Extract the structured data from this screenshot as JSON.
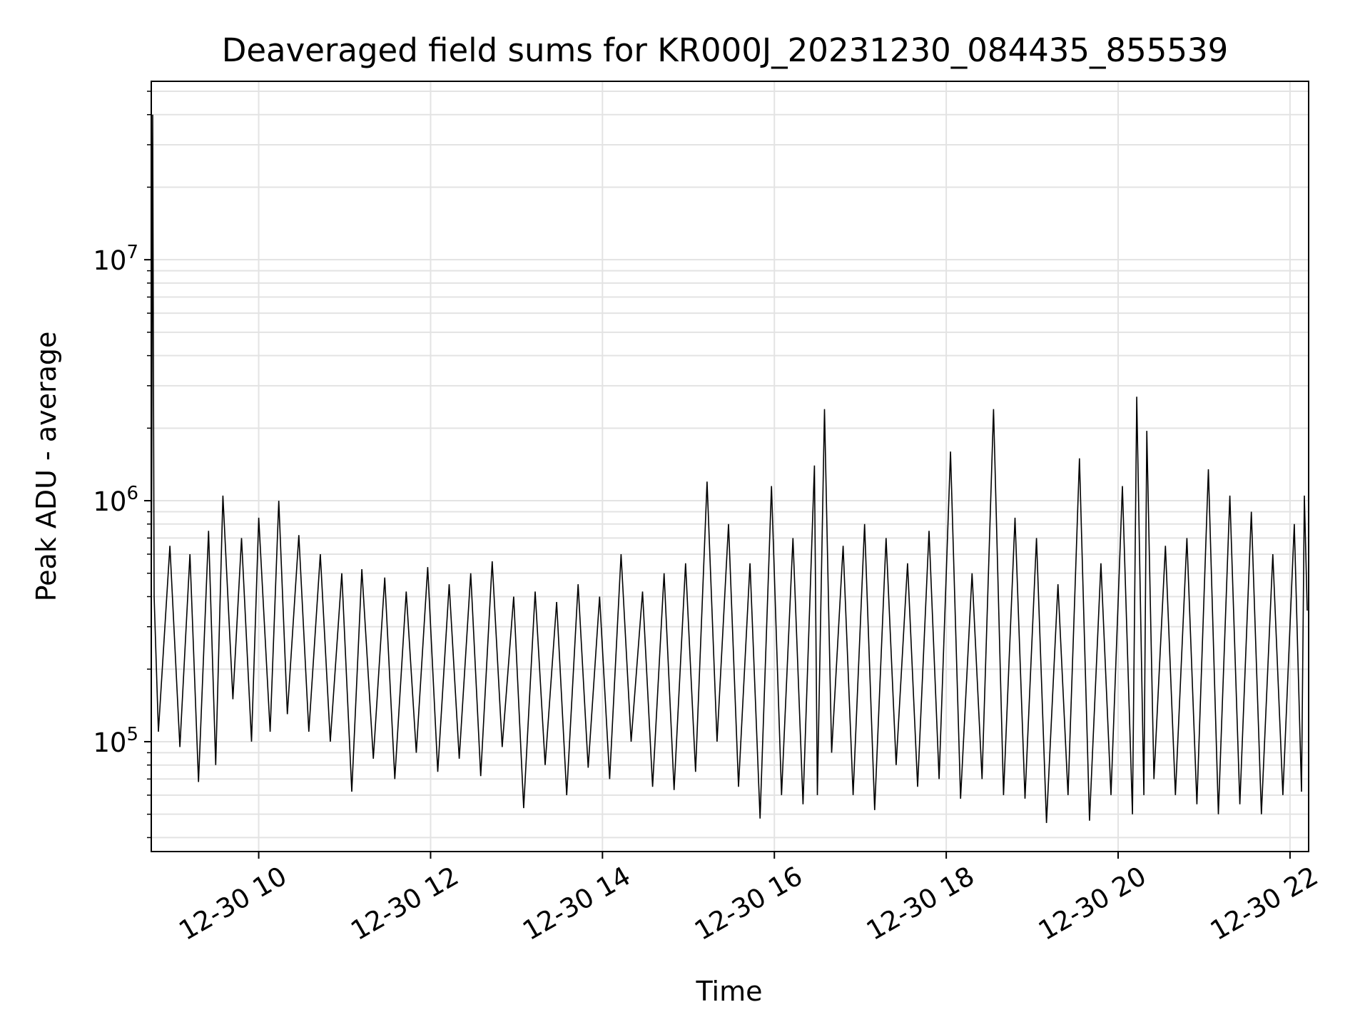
{
  "chart_data": {
    "type": "line",
    "title": "Deaveraged field sums for KR000J_20231230_084435_855539",
    "xlabel": "Time",
    "ylabel": "Peak ADU - average",
    "yscale": "log",
    "xlim": [
      "2023-12-30T08:45",
      "2023-12-30T22:13"
    ],
    "ylim": [
      35000,
      55000000
    ],
    "grid": true,
    "x_ticks": [
      {
        "value": "2023-12-30T10:00",
        "label": "12-30 10"
      },
      {
        "value": "2023-12-30T12:00",
        "label": "12-30 12"
      },
      {
        "value": "2023-12-30T14:00",
        "label": "12-30 14"
      },
      {
        "value": "2023-12-30T16:00",
        "label": "12-30 16"
      },
      {
        "value": "2023-12-30T18:00",
        "label": "12-30 18"
      },
      {
        "value": "2023-12-30T20:00",
        "label": "12-30 20"
      },
      {
        "value": "2023-12-30T22:00",
        "label": "12-30 22"
      }
    ],
    "y_ticks": [
      {
        "value": 100000,
        "base": "10",
        "exp": "5"
      },
      {
        "value": 1000000,
        "base": "10",
        "exp": "6"
      },
      {
        "value": 10000000,
        "base": "10",
        "exp": "7"
      }
    ],
    "series": [
      {
        "color": "#000000",
        "points": [
          [
            "2023-12-30T08:45",
            300000
          ],
          [
            "2023-12-30T08:46",
            40000000
          ],
          [
            "2023-12-30T08:47",
            400000
          ],
          [
            "2023-12-30T08:50",
            110000
          ],
          [
            "2023-12-30T08:58",
            650000
          ],
          [
            "2023-12-30T09:05",
            95000
          ],
          [
            "2023-12-30T09:12",
            600000
          ],
          [
            "2023-12-30T09:18",
            68000
          ],
          [
            "2023-12-30T09:25",
            750000
          ],
          [
            "2023-12-30T09:30",
            80000
          ],
          [
            "2023-12-30T09:35",
            1050000
          ],
          [
            "2023-12-30T09:42",
            150000
          ],
          [
            "2023-12-30T09:48",
            700000
          ],
          [
            "2023-12-30T09:55",
            100000
          ],
          [
            "2023-12-30T10:00",
            850000
          ],
          [
            "2023-12-30T10:08",
            110000
          ],
          [
            "2023-12-30T10:14",
            1000000
          ],
          [
            "2023-12-30T10:20",
            130000
          ],
          [
            "2023-12-30T10:28",
            720000
          ],
          [
            "2023-12-30T10:35",
            110000
          ],
          [
            "2023-12-30T10:43",
            600000
          ],
          [
            "2023-12-30T10:50",
            100000
          ],
          [
            "2023-12-30T10:58",
            500000
          ],
          [
            "2023-12-30T11:05",
            62000
          ],
          [
            "2023-12-30T11:12",
            520000
          ],
          [
            "2023-12-30T11:20",
            85000
          ],
          [
            "2023-12-30T11:28",
            480000
          ],
          [
            "2023-12-30T11:35",
            70000
          ],
          [
            "2023-12-30T11:43",
            420000
          ],
          [
            "2023-12-30T11:50",
            90000
          ],
          [
            "2023-12-30T11:58",
            530000
          ],
          [
            "2023-12-30T12:05",
            75000
          ],
          [
            "2023-12-30T12:13",
            450000
          ],
          [
            "2023-12-30T12:20",
            85000
          ],
          [
            "2023-12-30T12:28",
            500000
          ],
          [
            "2023-12-30T12:35",
            72000
          ],
          [
            "2023-12-30T12:43",
            560000
          ],
          [
            "2023-12-30T12:50",
            95000
          ],
          [
            "2023-12-30T12:58",
            400000
          ],
          [
            "2023-12-30T13:05",
            53000
          ],
          [
            "2023-12-30T13:13",
            420000
          ],
          [
            "2023-12-30T13:20",
            80000
          ],
          [
            "2023-12-30T13:28",
            380000
          ],
          [
            "2023-12-30T13:35",
            60000
          ],
          [
            "2023-12-30T13:43",
            450000
          ],
          [
            "2023-12-30T13:50",
            78000
          ],
          [
            "2023-12-30T13:58",
            400000
          ],
          [
            "2023-12-30T14:05",
            70000
          ],
          [
            "2023-12-30T14:13",
            600000
          ],
          [
            "2023-12-30T14:20",
            100000
          ],
          [
            "2023-12-30T14:28",
            420000
          ],
          [
            "2023-12-30T14:35",
            65000
          ],
          [
            "2023-12-30T14:43",
            500000
          ],
          [
            "2023-12-30T14:50",
            63000
          ],
          [
            "2023-12-30T14:58",
            550000
          ],
          [
            "2023-12-30T15:05",
            75000
          ],
          [
            "2023-12-30T15:13",
            1200000
          ],
          [
            "2023-12-30T15:20",
            100000
          ],
          [
            "2023-12-30T15:28",
            800000
          ],
          [
            "2023-12-30T15:35",
            65000
          ],
          [
            "2023-12-30T15:43",
            550000
          ],
          [
            "2023-12-30T15:50",
            48000
          ],
          [
            "2023-12-30T15:58",
            1150000
          ],
          [
            "2023-12-30T16:05",
            60000
          ],
          [
            "2023-12-30T16:13",
            700000
          ],
          [
            "2023-12-30T16:20",
            55000
          ],
          [
            "2023-12-30T16:28",
            1400000
          ],
          [
            "2023-12-30T16:30",
            60000
          ],
          [
            "2023-12-30T16:35",
            2400000
          ],
          [
            "2023-12-30T16:40",
            90000
          ],
          [
            "2023-12-30T16:48",
            650000
          ],
          [
            "2023-12-30T16:55",
            60000
          ],
          [
            "2023-12-30T17:03",
            800000
          ],
          [
            "2023-12-30T17:10",
            52000
          ],
          [
            "2023-12-30T17:18",
            700000
          ],
          [
            "2023-12-30T17:25",
            80000
          ],
          [
            "2023-12-30T17:33",
            550000
          ],
          [
            "2023-12-30T17:40",
            65000
          ],
          [
            "2023-12-30T17:48",
            750000
          ],
          [
            "2023-12-30T17:55",
            70000
          ],
          [
            "2023-12-30T18:03",
            1600000
          ],
          [
            "2023-12-30T18:10",
            58000
          ],
          [
            "2023-12-30T18:18",
            500000
          ],
          [
            "2023-12-30T18:25",
            70000
          ],
          [
            "2023-12-30T18:33",
            2400000
          ],
          [
            "2023-12-30T18:40",
            60000
          ],
          [
            "2023-12-30T18:48",
            850000
          ],
          [
            "2023-12-30T18:55",
            58000
          ],
          [
            "2023-12-30T19:03",
            700000
          ],
          [
            "2023-12-30T19:10",
            46000
          ],
          [
            "2023-12-30T19:18",
            450000
          ],
          [
            "2023-12-30T19:25",
            60000
          ],
          [
            "2023-12-30T19:33",
            1500000
          ],
          [
            "2023-12-30T19:40",
            47000
          ],
          [
            "2023-12-30T19:48",
            550000
          ],
          [
            "2023-12-30T19:55",
            60000
          ],
          [
            "2023-12-30T20:03",
            1150000
          ],
          [
            "2023-12-30T20:10",
            50000
          ],
          [
            "2023-12-30T20:13",
            2700000
          ],
          [
            "2023-12-30T20:18",
            60000
          ],
          [
            "2023-12-30T20:20",
            1950000
          ],
          [
            "2023-12-30T20:25",
            70000
          ],
          [
            "2023-12-30T20:33",
            650000
          ],
          [
            "2023-12-30T20:40",
            60000
          ],
          [
            "2023-12-30T20:48",
            700000
          ],
          [
            "2023-12-30T20:55",
            55000
          ],
          [
            "2023-12-30T21:03",
            1350000
          ],
          [
            "2023-12-30T21:10",
            50000
          ],
          [
            "2023-12-30T21:18",
            1050000
          ],
          [
            "2023-12-30T21:25",
            55000
          ],
          [
            "2023-12-30T21:33",
            900000
          ],
          [
            "2023-12-30T21:40",
            50000
          ],
          [
            "2023-12-30T21:48",
            600000
          ],
          [
            "2023-12-30T21:55",
            60000
          ],
          [
            "2023-12-30T22:03",
            800000
          ],
          [
            "2023-12-30T22:08",
            62000
          ],
          [
            "2023-12-30T22:10",
            1050000
          ],
          [
            "2023-12-30T22:12",
            350000
          ]
        ]
      }
    ]
  }
}
